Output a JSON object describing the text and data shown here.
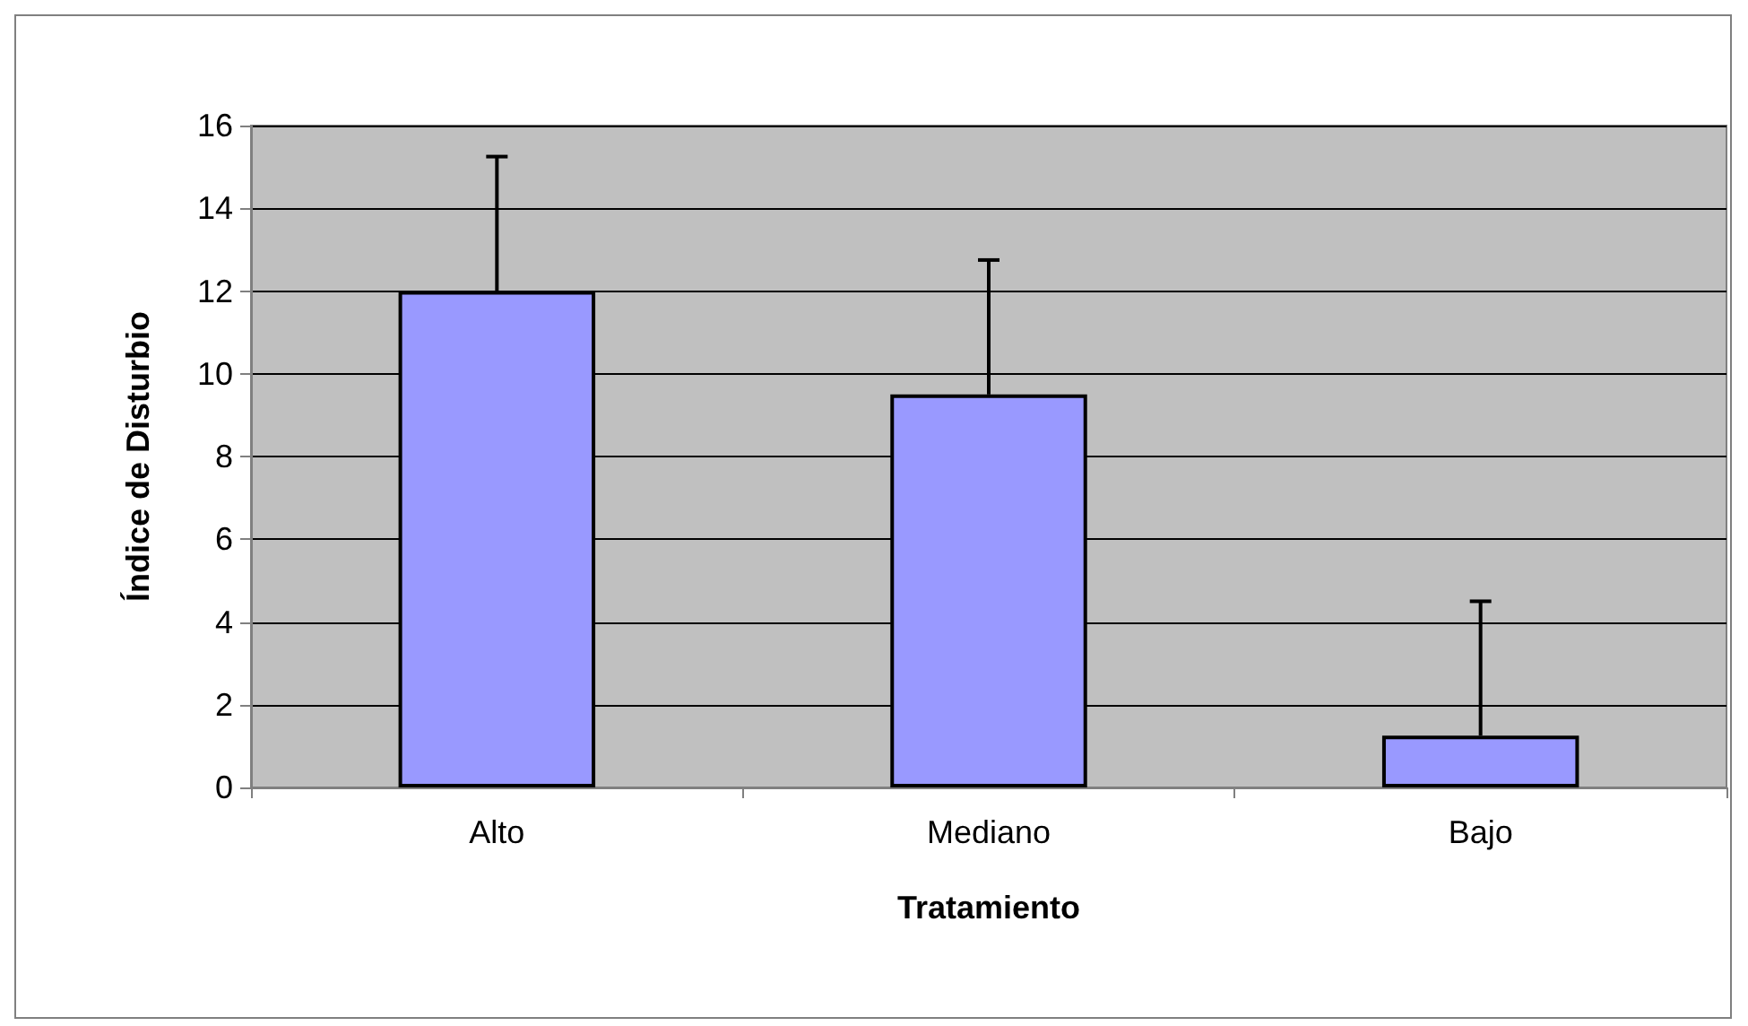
{
  "chart_data": {
    "type": "bar",
    "xlabel": "Tratamiento",
    "ylabel": "Índice de Disturbio",
    "categories": [
      "Alto",
      "Mediano",
      "Bajo"
    ],
    "values": [
      12,
      9.5,
      1.25
    ],
    "errors": [
      [
        12,
        15.25
      ],
      [
        9.5,
        12.75
      ],
      [
        1.25,
        4.5
      ]
    ],
    "color": "#9999ff",
    "ylim": [
      0,
      16
    ],
    "yticks": [
      0,
      2,
      4,
      6,
      8,
      10,
      12,
      14,
      16
    ],
    "grid": "y"
  }
}
